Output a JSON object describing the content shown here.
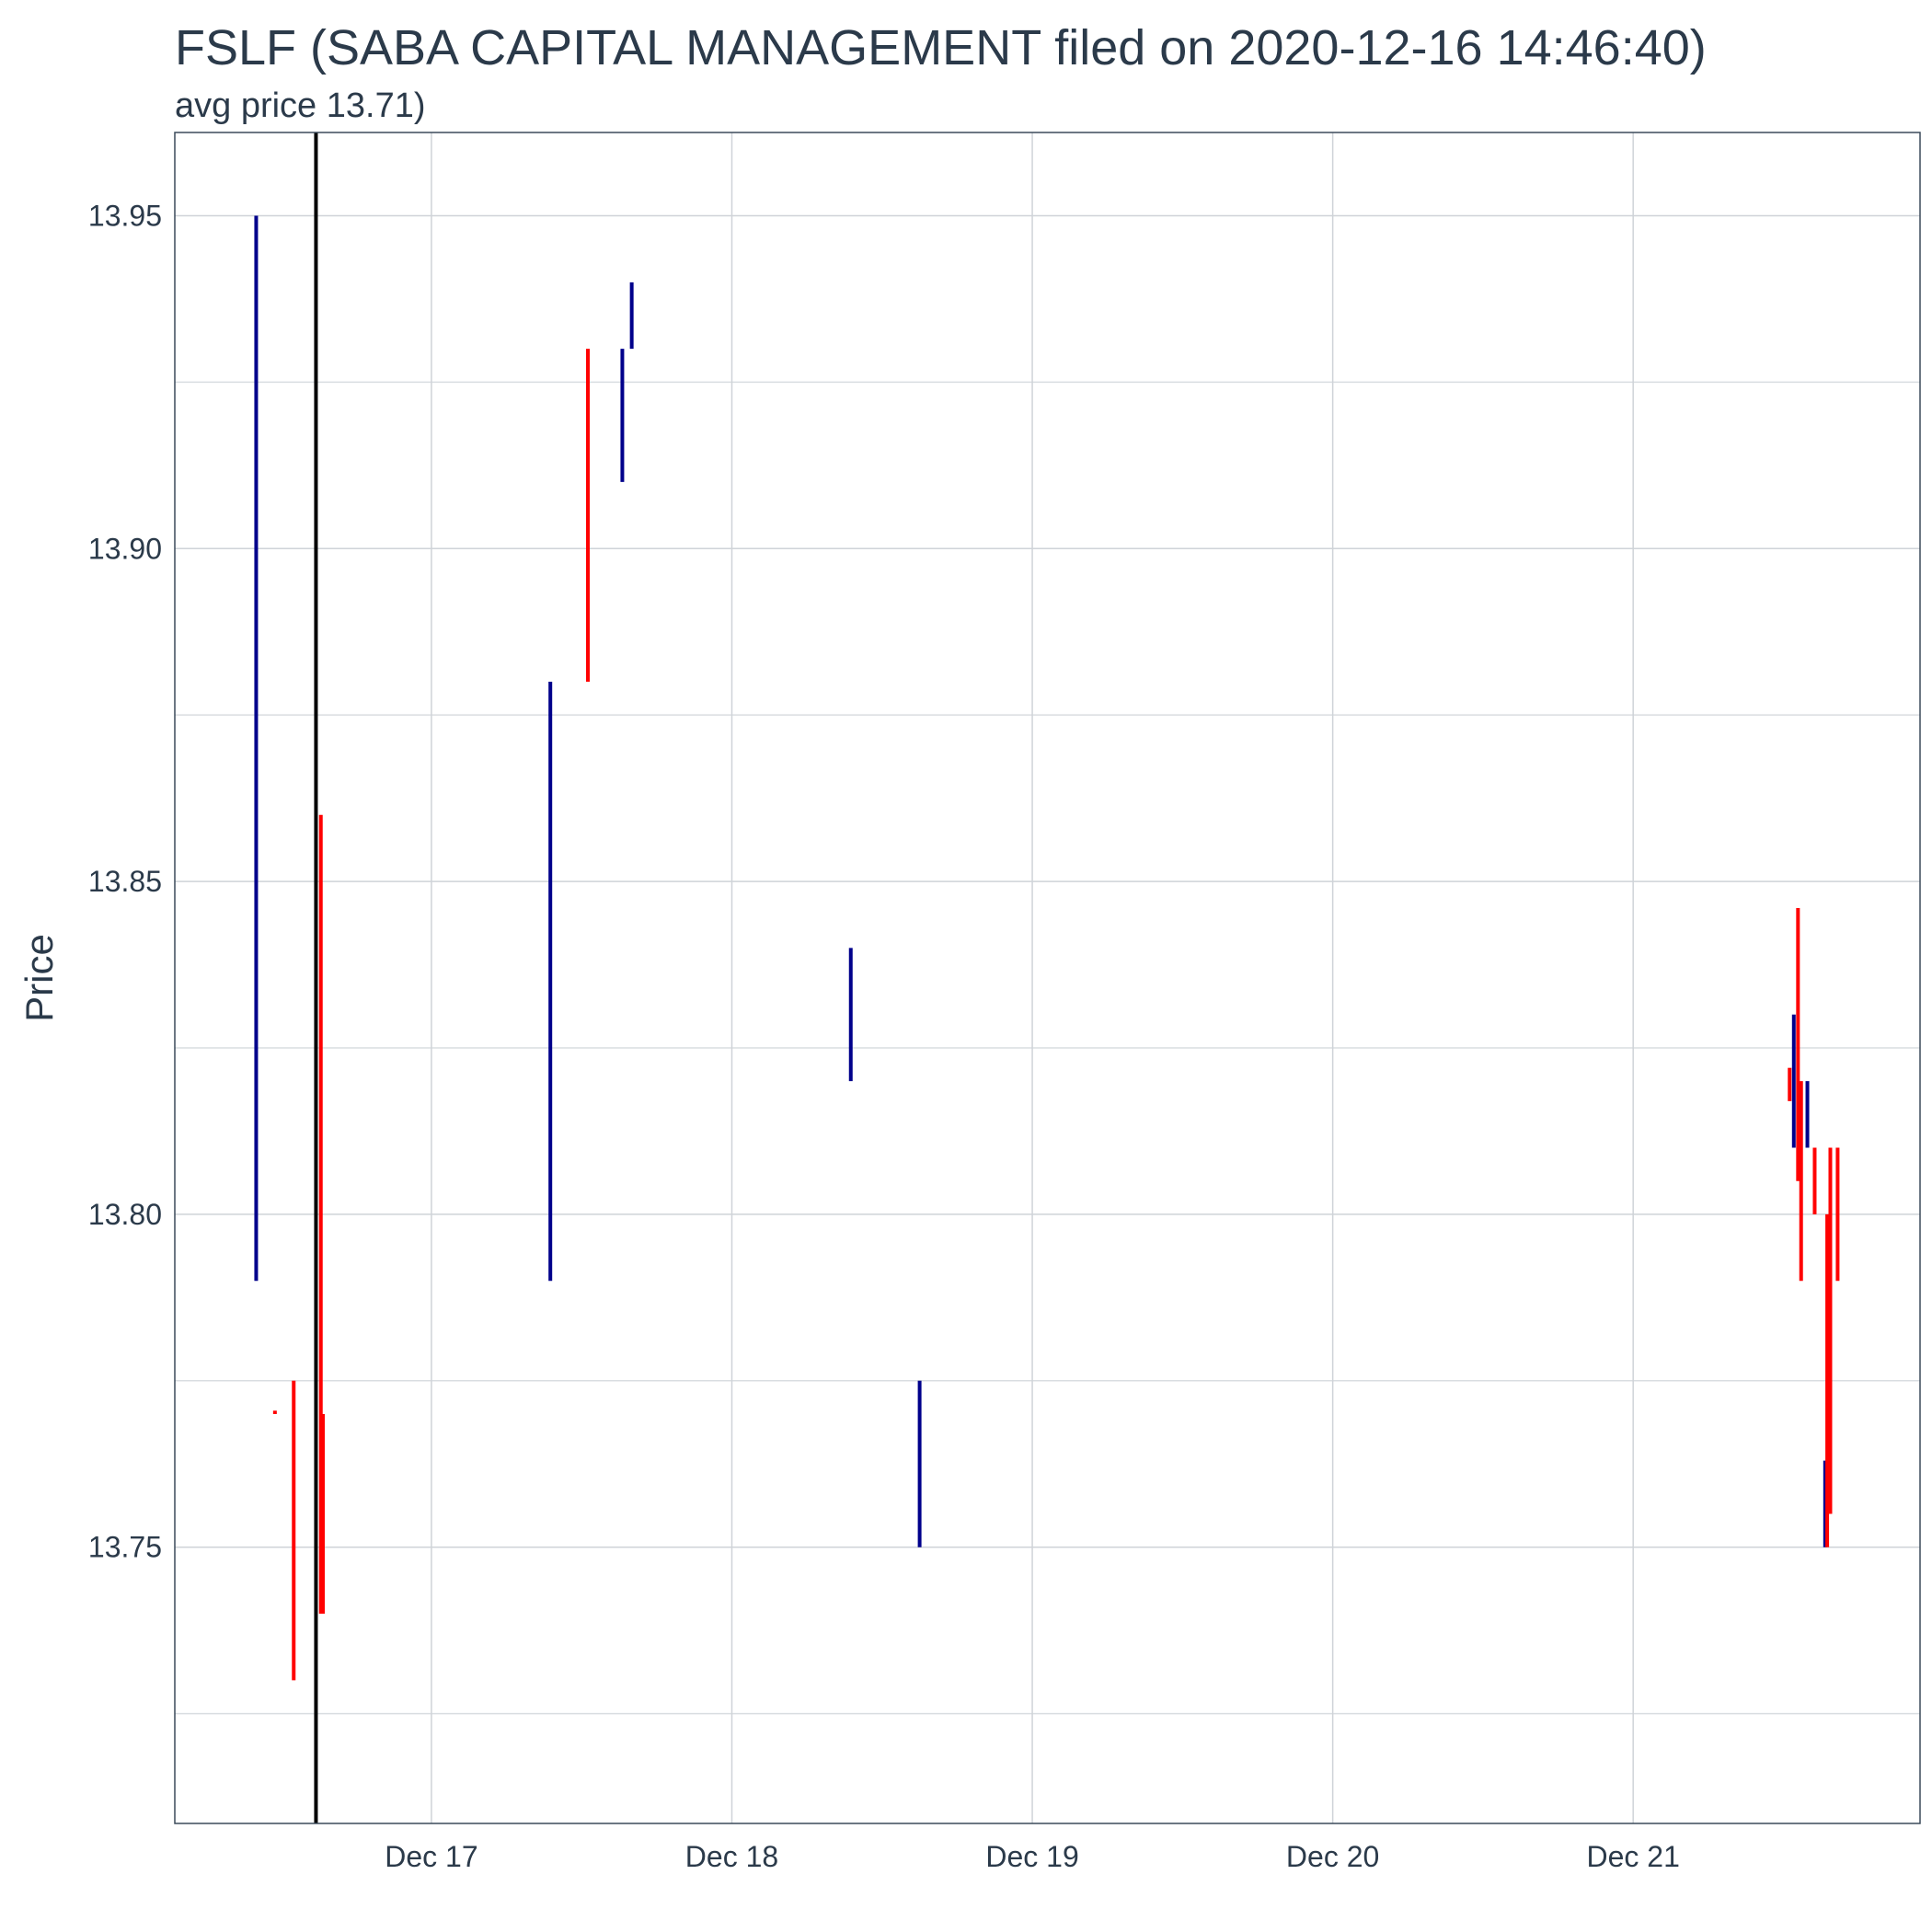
{
  "chart_data": {
    "type": "ohlc",
    "title": "FSLF (SABA CAPITAL MANAGEMENT filed on 2020-12-16 14:46:40)",
    "subtitle": "avg price 13.71)",
    "ylabel": "Price",
    "xlabel": "",
    "xlim": [
      "2020-12-16T03:30:00",
      "2020-12-21T22:55:00"
    ],
    "ylim": [
      13.7085,
      13.9625
    ],
    "y_ticks": [
      13.75,
      13.8,
      13.85,
      13.9,
      13.95
    ],
    "y_tick_labels": [
      "13.75",
      "13.80",
      "13.85",
      "13.90",
      "13.95"
    ],
    "x_ticks": [
      "2020-12-17",
      "2020-12-18",
      "2020-12-19",
      "2020-12-20",
      "2020-12-21"
    ],
    "x_tick_labels": [
      "Dec 17",
      "Dec 18",
      "Dec 19",
      "Dec 20",
      "Dec 21"
    ],
    "grid": true,
    "filing_time": "2020-12-16T14:46:40",
    "colors": {
      "up": "#00008b",
      "down": "#ff0000",
      "filing_line": "#000000"
    },
    "bars": [
      {
        "t": "2020-12-16T10:00:00",
        "low": 13.79,
        "high": 13.95,
        "dir": "up"
      },
      {
        "t": "2020-12-16T11:30:00",
        "low": 13.77,
        "high": 13.7705,
        "dir": "down"
      },
      {
        "t": "2020-12-16T13:00:00",
        "low": 13.73,
        "high": 13.775,
        "dir": "down"
      },
      {
        "t": "2020-12-16T15:10:00",
        "low": 13.74,
        "high": 13.86,
        "dir": "down"
      },
      {
        "t": "2020-12-16T15:20:00",
        "low": 13.74,
        "high": 13.77,
        "dir": "down"
      },
      {
        "t": "2020-12-17T09:30:00",
        "low": 13.79,
        "high": 13.88,
        "dir": "up"
      },
      {
        "t": "2020-12-17T12:30:00",
        "low": 13.88,
        "high": 13.93,
        "dir": "down"
      },
      {
        "t": "2020-12-17T15:15:00",
        "low": 13.91,
        "high": 13.93,
        "dir": "up"
      },
      {
        "t": "2020-12-17T16:00:00",
        "low": 13.93,
        "high": 13.94,
        "dir": "up"
      },
      {
        "t": "2020-12-18T09:30:00",
        "low": 13.82,
        "high": 13.84,
        "dir": "up"
      },
      {
        "t": "2020-12-18T15:00:00",
        "low": 13.75,
        "high": 13.775,
        "dir": "up"
      },
      {
        "t": "2020-12-21T12:30:00",
        "low": 13.817,
        "high": 13.822,
        "dir": "down"
      },
      {
        "t": "2020-12-21T12:50:00",
        "low": 13.81,
        "high": 13.83,
        "dir": "up"
      },
      {
        "t": "2020-12-21T13:10:00",
        "low": 13.805,
        "high": 13.846,
        "dir": "down"
      },
      {
        "t": "2020-12-21T13:25:00",
        "low": 13.79,
        "high": 13.82,
        "dir": "down"
      },
      {
        "t": "2020-12-21T13:55:00",
        "low": 13.81,
        "high": 13.82,
        "dir": "up"
      },
      {
        "t": "2020-12-21T14:30:00",
        "low": 13.8,
        "high": 13.81,
        "dir": "down"
      },
      {
        "t": "2020-12-21T15:20:00",
        "low": 13.75,
        "high": 13.763,
        "dir": "up"
      },
      {
        "t": "2020-12-21T15:30:00",
        "low": 13.75,
        "high": 13.8,
        "dir": "down"
      },
      {
        "t": "2020-12-21T15:45:00",
        "low": 13.755,
        "high": 13.81,
        "dir": "down"
      },
      {
        "t": "2020-12-21T16:20:00",
        "low": 13.79,
        "high": 13.81,
        "dir": "down"
      }
    ]
  }
}
